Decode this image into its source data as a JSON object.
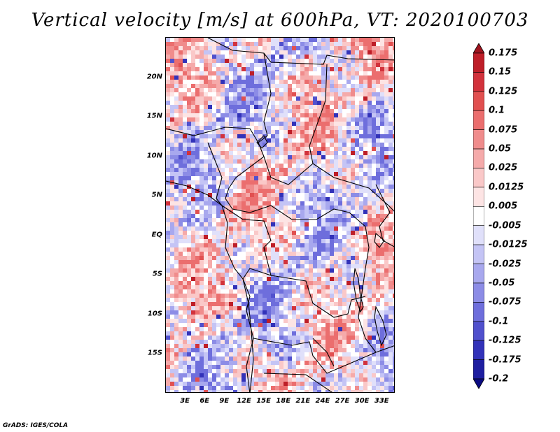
{
  "title": "Vertical velocity [m/s] at 600hPa, VT: 2020100703",
  "credit": "GrADS: IGES/COLA",
  "map": {
    "region": "Central Africa",
    "lat_range": [
      -20,
      25
    ],
    "lon_range": [
      0,
      35
    ],
    "lat_labels": [
      {
        "value": 20,
        "label": "20N"
      },
      {
        "value": 15,
        "label": "15N"
      },
      {
        "value": 10,
        "label": "10N"
      },
      {
        "value": 5,
        "label": "5N"
      },
      {
        "value": 0,
        "label": "EQ"
      },
      {
        "value": -5,
        "label": "5S"
      },
      {
        "value": -10,
        "label": "10S"
      },
      {
        "value": -15,
        "label": "15S"
      }
    ],
    "lon_labels": [
      {
        "value": 3,
        "label": "3E"
      },
      {
        "value": 6,
        "label": "6E"
      },
      {
        "value": 9,
        "label": "9E"
      },
      {
        "value": 12,
        "label": "12E"
      },
      {
        "value": 15,
        "label": "15E"
      },
      {
        "value": 18,
        "label": "18E"
      },
      {
        "value": 21,
        "label": "21E"
      },
      {
        "value": 24,
        "label": "24E"
      },
      {
        "value": 27,
        "label": "27E"
      },
      {
        "value": 30,
        "label": "30E"
      },
      {
        "value": 33,
        "label": "33E"
      }
    ]
  },
  "colorbar": {
    "levels": [
      "0.175",
      "0.15",
      "0.125",
      "0.1",
      "0.075",
      "0.05",
      "0.025",
      "0.0125",
      "0.005",
      "-0.005",
      "-0.0125",
      "-0.025",
      "-0.05",
      "-0.075",
      "-0.1",
      "-0.125",
      "-0.175",
      "-0.2"
    ],
    "colors": [
      "#a0141e",
      "#be1e28",
      "#d2323c",
      "#e15050",
      "#eb6e6e",
      "#f08c8c",
      "#f5aaaa",
      "#fac8c8",
      "#fde4e4",
      "#ffffff",
      "#e0e0fa",
      "#c4c4f5",
      "#a8a8ee",
      "#8c8ce6",
      "#6e6edc",
      "#5050cd",
      "#3232b9",
      "#1e1ea0",
      "#0a0a82"
    ]
  }
}
